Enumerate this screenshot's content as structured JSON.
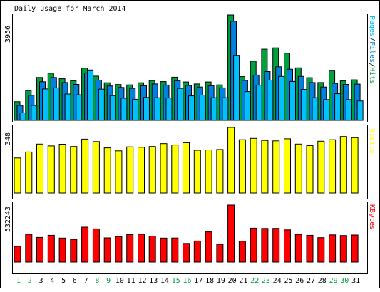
{
  "chart_data": {
    "type": "bar",
    "title": "Daily usage for March 2014",
    "categories": [
      "1",
      "2",
      "3",
      "4",
      "5",
      "6",
      "7",
      "8",
      "9",
      "10",
      "11",
      "12",
      "13",
      "14",
      "15",
      "16",
      "17",
      "18",
      "19",
      "20",
      "21",
      "22",
      "23",
      "24",
      "25",
      "26",
      "27",
      "28",
      "29",
      "30",
      "31"
    ],
    "weekend_days": [
      "1",
      "2",
      "8",
      "9",
      "15",
      "16",
      "22",
      "23",
      "29",
      "30"
    ],
    "panels": [
      {
        "name": "hits-files-pages",
        "right_label_parts": [
          "Pages",
          "/",
          "Files",
          "/",
          "Hits"
        ],
        "y_tick_label": "3956",
        "ymax": 3956,
        "series": [
          {
            "name": "Hits",
            "color": "#00a040",
            "values": [
              700,
              1120,
              1610,
              1770,
              1560,
              1490,
              1960,
              1660,
              1410,
              1345,
              1330,
              1410,
              1495,
              1455,
              1620,
              1440,
              1365,
              1440,
              1330,
              3956,
              1640,
              2220,
              2670,
              2720,
              2520,
              1970,
              1600,
              1420,
              1880,
              1480,
              1520
            ]
          },
          {
            "name": "Files",
            "color": "#0080e0",
            "values": [
              560,
              940,
              1450,
              1610,
              1420,
              1350,
              1780,
              1510,
              1290,
              1235,
              1200,
              1300,
              1365,
              1325,
              1490,
              1310,
              1250,
              1300,
              1220,
              3720,
              1500,
              1700,
              1830,
              2010,
              1920,
              1650,
              1420,
              1250,
              1390,
              1350,
              1360
            ]
          },
          {
            "name": "Pages",
            "color": "#00c0ff",
            "values": [
              280,
              560,
              1180,
              1220,
              990,
              960,
              1890,
              1170,
              930,
              830,
              790,
              860,
              850,
              840,
              1200,
              920,
              950,
              850,
              850,
              2440,
              1080,
              1320,
              1510,
              1650,
              1460,
              1160,
              850,
              780,
              1000,
              780,
              730
            ]
          }
        ]
      },
      {
        "name": "visits",
        "right_label_parts": [
          "Visits"
        ],
        "y_tick_label": "348",
        "ymax": 348,
        "series": [
          {
            "name": "Visits",
            "color": "#ffff00",
            "values": [
              186,
              218,
              260,
              250,
              259,
              247,
              286,
              273,
              240,
              224,
              245,
              243,
              247,
              262,
              255,
              267,
              227,
              229,
              231,
              348,
              283,
              290,
              279,
              277,
              288,
              260,
              252,
              275,
              283,
              300,
              294
            ]
          }
        ]
      },
      {
        "name": "kbytes",
        "right_label_parts": [
          "KBytes"
        ],
        "y_tick_label": "532243",
        "ymax": 532243,
        "series": [
          {
            "name": "KBytes",
            "color": "#ff0000",
            "values": [
              147000,
              260000,
              230000,
              250000,
              224000,
              212000,
              326000,
              310000,
              226000,
              238000,
              256000,
              260000,
              243000,
              224000,
              225000,
              174000,
              197000,
              282000,
              166000,
              532243,
              195000,
              317000,
              314000,
              315000,
              301000,
              258000,
              250000,
              228000,
              254000,
              248000,
              253000
            ]
          }
        ]
      }
    ]
  },
  "colors": {
    "frame": "#000000",
    "weekday_label": "#000000",
    "weekend_label": "#00a040",
    "bar_outline": "#000000"
  }
}
